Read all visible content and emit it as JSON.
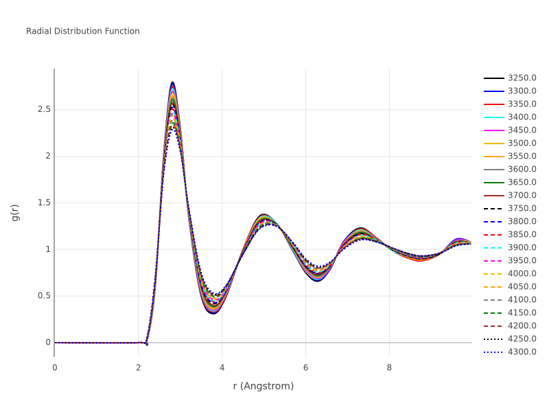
{
  "chart_data": {
    "type": "line",
    "title": "Radial Distribution Function",
    "x_label": "r (Angstrom)",
    "y_label": "g(r)",
    "x": [
      0,
      2,
      2.2,
      2.4,
      2.6,
      2.8,
      3.0,
      3.2,
      3.5,
      3.8,
      4.1,
      4.5,
      4.9,
      5.3,
      5.7,
      6.0,
      6.3,
      6.6,
      6.9,
      7.3,
      7.7,
      8.1,
      8.5,
      8.8,
      9.2,
      9.6,
      9.95
    ],
    "xlim": [
      0,
      9.98
    ],
    "xticks": [
      0,
      2,
      4,
      6,
      8
    ],
    "ylim": [
      -0.155,
      2.94
    ],
    "yticks": [
      0,
      0.5,
      1,
      1.5,
      2,
      2.5
    ],
    "grid": true,
    "series": [
      {
        "name": "3250.0",
        "color": "#000000",
        "dash": "solid",
        "values": [
          0,
          0,
          0.02,
          0.6,
          2.0,
          2.79,
          2.3,
          1.35,
          0.5,
          0.31,
          0.5,
          1.0,
          1.36,
          1.28,
          0.98,
          0.75,
          0.66,
          0.8,
          1.08,
          1.23,
          1.12,
          0.98,
          0.9,
          0.88,
          0.95,
          1.11,
          1.08
        ]
      },
      {
        "name": "3300.0",
        "color": "#0000ff",
        "dash": "solid",
        "values": [
          0,
          0,
          0.02,
          0.6,
          1.99,
          2.77,
          2.29,
          1.35,
          0.51,
          0.32,
          0.51,
          1.0,
          1.35,
          1.28,
          0.98,
          0.76,
          0.67,
          0.8,
          1.08,
          1.22,
          1.12,
          0.98,
          0.9,
          0.88,
          0.95,
          1.11,
          1.08
        ]
      },
      {
        "name": "3350.0",
        "color": "#ff0000",
        "dash": "solid",
        "values": [
          0,
          0,
          0.02,
          0.61,
          1.98,
          2.74,
          2.28,
          1.36,
          0.52,
          0.33,
          0.51,
          1.0,
          1.35,
          1.28,
          0.99,
          0.76,
          0.68,
          0.81,
          1.07,
          1.22,
          1.12,
          0.98,
          0.9,
          0.88,
          0.95,
          1.1,
          1.08
        ]
      },
      {
        "name": "3400.0",
        "color": "#00ffff",
        "dash": "solid",
        "values": [
          0,
          0,
          0.02,
          0.61,
          1.97,
          2.72,
          2.26,
          1.36,
          0.54,
          0.34,
          0.52,
          0.99,
          1.34,
          1.28,
          0.99,
          0.77,
          0.68,
          0.81,
          1.07,
          1.21,
          1.11,
          0.98,
          0.91,
          0.89,
          0.95,
          1.1,
          1.08
        ]
      },
      {
        "name": "3450.0",
        "color": "#ff00ff",
        "dash": "solid",
        "values": [
          0,
          0,
          0.03,
          0.62,
          1.96,
          2.69,
          2.25,
          1.37,
          0.55,
          0.35,
          0.52,
          0.99,
          1.33,
          1.27,
          1.0,
          0.78,
          0.69,
          0.81,
          1.07,
          1.2,
          1.11,
          0.99,
          0.91,
          0.89,
          0.95,
          1.1,
          1.08
        ]
      },
      {
        "name": "3500.0",
        "color": "#f5b800",
        "dash": "solid",
        "values": [
          0,
          0,
          0.03,
          0.62,
          1.95,
          2.67,
          2.24,
          1.37,
          0.56,
          0.36,
          0.53,
          0.99,
          1.33,
          1.27,
          1.0,
          0.79,
          0.7,
          0.82,
          1.06,
          1.2,
          1.11,
          0.99,
          0.91,
          0.89,
          0.95,
          1.09,
          1.08
        ]
      },
      {
        "name": "3550.0",
        "color": "#ffa500",
        "dash": "solid",
        "values": [
          0,
          0,
          0.03,
          0.63,
          1.94,
          2.64,
          2.23,
          1.38,
          0.57,
          0.37,
          0.53,
          0.99,
          1.32,
          1.27,
          1.01,
          0.79,
          0.71,
          0.82,
          1.06,
          1.19,
          1.11,
          0.99,
          0.91,
          0.89,
          0.95,
          1.09,
          1.07
        ]
      },
      {
        "name": "3600.0",
        "color": "#808080",
        "dash": "solid",
        "values": [
          0,
          0,
          0.03,
          0.63,
          1.93,
          2.62,
          2.22,
          1.38,
          0.58,
          0.38,
          0.54,
          0.98,
          1.31,
          1.27,
          1.01,
          0.8,
          0.71,
          0.82,
          1.05,
          1.19,
          1.11,
          0.99,
          0.92,
          0.9,
          0.95,
          1.09,
          1.07
        ]
      },
      {
        "name": "3650.0",
        "color": "#008000",
        "dash": "solid",
        "values": [
          0,
          0,
          0.03,
          0.64,
          1.92,
          2.6,
          2.2,
          1.39,
          0.6,
          0.39,
          0.55,
          0.98,
          1.31,
          1.27,
          1.01,
          0.81,
          0.72,
          0.83,
          1.05,
          1.18,
          1.1,
          0.99,
          0.92,
          0.9,
          0.95,
          1.08,
          1.07
        ]
      },
      {
        "name": "3700.0",
        "color": "#a52a2a",
        "dash": "solid",
        "values": [
          0,
          0,
          0.03,
          0.64,
          1.91,
          2.57,
          2.19,
          1.39,
          0.61,
          0.4,
          0.55,
          0.98,
          1.3,
          1.27,
          1.02,
          0.81,
          0.73,
          0.83,
          1.05,
          1.17,
          1.1,
          0.99,
          0.92,
          0.9,
          0.95,
          1.08,
          1.07
        ]
      },
      {
        "name": "3750.0",
        "color": "#000000",
        "dash": "dash",
        "values": [
          0,
          0,
          0.03,
          0.65,
          1.9,
          2.55,
          2.18,
          1.4,
          0.62,
          0.42,
          0.56,
          0.98,
          1.29,
          1.27,
          1.02,
          0.82,
          0.74,
          0.83,
          1.04,
          1.17,
          1.1,
          0.99,
          0.92,
          0.9,
          0.95,
          1.08,
          1.07
        ]
      },
      {
        "name": "3800.0",
        "color": "#0000ff",
        "dash": "dash",
        "values": [
          0,
          0,
          0.04,
          0.65,
          1.9,
          2.52,
          2.17,
          1.4,
          0.63,
          0.43,
          0.56,
          0.97,
          1.29,
          1.26,
          1.03,
          0.83,
          0.74,
          0.84,
          1.04,
          1.16,
          1.1,
          1.0,
          0.93,
          0.91,
          0.96,
          1.07,
          1.07
        ]
      },
      {
        "name": "3850.0",
        "color": "#ff0000",
        "dash": "dash",
        "values": [
          0,
          0,
          0.04,
          0.66,
          1.89,
          2.5,
          2.16,
          1.41,
          0.64,
          0.44,
          0.57,
          0.97,
          1.28,
          1.26,
          1.03,
          0.84,
          0.75,
          0.84,
          1.03,
          1.16,
          1.1,
          1.0,
          0.93,
          0.91,
          0.96,
          1.07,
          1.07
        ]
      },
      {
        "name": "3900.0",
        "color": "#00ffff",
        "dash": "dash",
        "values": [
          0,
          0,
          0.04,
          0.66,
          1.88,
          2.47,
          2.15,
          1.41,
          0.65,
          0.45,
          0.57,
          0.97,
          1.27,
          1.26,
          1.04,
          0.84,
          0.76,
          0.84,
          1.03,
          1.15,
          1.1,
          1.0,
          0.93,
          0.91,
          0.96,
          1.07,
          1.07
        ]
      },
      {
        "name": "3950.0",
        "color": "#ff00ff",
        "dash": "dash",
        "values": [
          0,
          0,
          0.04,
          0.67,
          1.87,
          2.45,
          2.13,
          1.42,
          0.67,
          0.46,
          0.58,
          0.97,
          1.27,
          1.26,
          1.04,
          0.85,
          0.77,
          0.85,
          1.03,
          1.14,
          1.09,
          1.0,
          0.93,
          0.91,
          0.96,
          1.06,
          1.07
        ]
      },
      {
        "name": "4000.0",
        "color": "#f5b800",
        "dash": "dash",
        "values": [
          0,
          0,
          0.04,
          0.67,
          1.86,
          2.43,
          2.12,
          1.42,
          0.68,
          0.47,
          0.59,
          0.96,
          1.26,
          1.26,
          1.04,
          0.86,
          0.77,
          0.85,
          1.02,
          1.14,
          1.09,
          1.0,
          0.94,
          0.92,
          0.96,
          1.06,
          1.07
        ]
      },
      {
        "name": "4050.0",
        "color": "#ffa500",
        "dash": "dash",
        "values": [
          0,
          0,
          0.04,
          0.68,
          1.85,
          2.4,
          2.11,
          1.43,
          0.69,
          0.48,
          0.59,
          0.96,
          1.25,
          1.26,
          1.05,
          0.86,
          0.78,
          0.85,
          1.02,
          1.13,
          1.09,
          1.0,
          0.94,
          0.92,
          0.96,
          1.06,
          1.06
        ]
      },
      {
        "name": "4100.0",
        "color": "#808080",
        "dash": "dash",
        "values": [
          0,
          0,
          0.04,
          0.68,
          1.84,
          2.38,
          2.1,
          1.43,
          0.7,
          0.49,
          0.6,
          0.96,
          1.25,
          1.26,
          1.05,
          0.87,
          0.79,
          0.86,
          1.01,
          1.12,
          1.09,
          1.0,
          0.94,
          0.92,
          0.96,
          1.05,
          1.06
        ]
      },
      {
        "name": "4150.0",
        "color": "#008000",
        "dash": "dash",
        "values": [
          0,
          0,
          0.05,
          0.69,
          1.83,
          2.35,
          2.09,
          1.44,
          0.71,
          0.5,
          0.6,
          0.96,
          1.24,
          1.25,
          1.06,
          0.88,
          0.8,
          0.86,
          1.01,
          1.12,
          1.09,
          1.01,
          0.94,
          0.92,
          0.96,
          1.05,
          1.06
        ]
      },
      {
        "name": "4200.0",
        "color": "#a52a2a",
        "dash": "dash",
        "values": [
          0,
          0,
          0.05,
          0.69,
          1.82,
          2.33,
          2.07,
          1.44,
          0.73,
          0.51,
          0.61,
          0.95,
          1.23,
          1.25,
          1.06,
          0.89,
          0.8,
          0.86,
          1.01,
          1.11,
          1.08,
          1.01,
          0.95,
          0.93,
          0.96,
          1.05,
          1.06
        ]
      },
      {
        "name": "4250.0",
        "color": "#000000",
        "dash": "dot",
        "values": [
          0,
          0,
          0.05,
          0.7,
          1.81,
          2.3,
          2.06,
          1.45,
          0.74,
          0.52,
          0.61,
          0.95,
          1.23,
          1.25,
          1.07,
          0.89,
          0.81,
          0.87,
          1.0,
          1.11,
          1.08,
          1.01,
          0.95,
          0.93,
          0.96,
          1.04,
          1.06
        ]
      },
      {
        "name": "4300.0",
        "color": "#0000ff",
        "dash": "dot",
        "values": [
          0,
          0,
          0.05,
          0.7,
          1.8,
          2.28,
          2.05,
          1.45,
          0.75,
          0.53,
          0.62,
          0.95,
          1.22,
          1.25,
          1.07,
          0.9,
          0.82,
          0.87,
          1.0,
          1.1,
          1.08,
          1.01,
          0.95,
          0.93,
          0.96,
          1.04,
          1.06
        ]
      }
    ]
  }
}
